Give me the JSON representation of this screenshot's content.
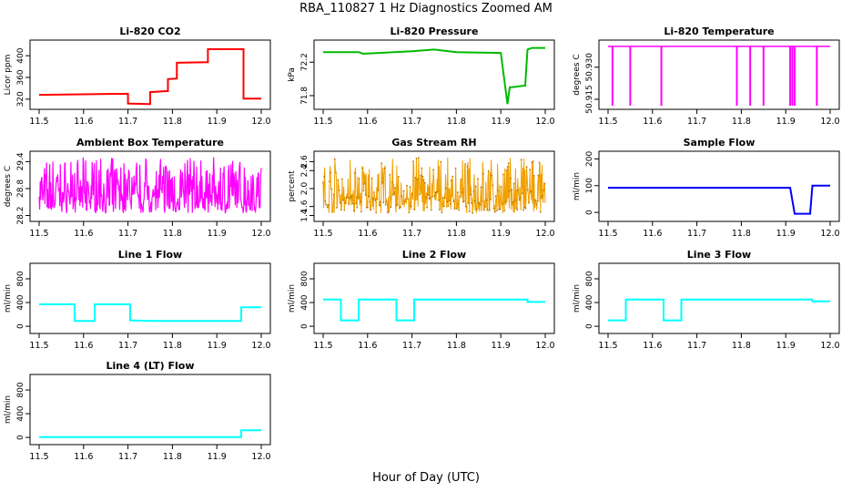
{
  "title": "RBA_110827  1 Hz Diagnostics Zoomed AM",
  "xlabel": "Hour of Day (UTC)",
  "colors": {
    "co2": "#ff0000",
    "pressure": "#00bb00",
    "temperature": "#ff00ff",
    "box_temp": "#ff00ff",
    "rh": "#f0a000",
    "rh_points": "#b87800",
    "sample_flow": "#0000ff",
    "line_flow": "#00ffff"
  },
  "chart_data": [
    {
      "type": "line",
      "title": "Li-820 CO2",
      "ylabel": "Licor ppm",
      "xlim": [
        11.5,
        12.0
      ],
      "ylim": [
        308,
        422
      ],
      "xticks": [
        "11.5",
        "11.6",
        "11.7",
        "11.8",
        "11.9",
        "12.0"
      ],
      "yticks": [
        "320",
        "360",
        "400"
      ],
      "color": "#ff0000",
      "series": [
        {
          "x": [
            11.5,
            11.7,
            11.7,
            11.75,
            11.75,
            11.79,
            11.79,
            11.81,
            11.81,
            11.88,
            11.88,
            11.96,
            11.96,
            12.0
          ],
          "y": [
            328,
            330,
            312,
            311,
            333,
            335,
            357,
            358,
            387,
            388,
            412,
            412,
            321,
            321
          ]
        }
      ]
    },
    {
      "type": "line",
      "title": "Li-820 Pressure",
      "ylabel": "kPa",
      "xlim": [
        11.5,
        12.0
      ],
      "ylim": [
        71.68,
        72.42
      ],
      "xticks": [
        "11.5",
        "11.6",
        "11.7",
        "11.8",
        "11.9",
        "12.0"
      ],
      "yticks": [
        "71.8",
        "72.2"
      ],
      "color": "#00bb00",
      "series": [
        {
          "x": [
            11.5,
            11.58,
            11.59,
            11.7,
            11.75,
            11.8,
            11.9,
            11.915,
            11.92,
            11.925,
            11.955,
            11.96,
            11.97,
            12.0
          ],
          "y": [
            72.32,
            72.32,
            72.3,
            72.33,
            72.35,
            72.32,
            72.31,
            71.7,
            71.9,
            71.9,
            71.92,
            72.35,
            72.37,
            72.37
          ]
        }
      ]
    },
    {
      "type": "line",
      "title": "Li-820 Temperature",
      "ylabel": "degrees C",
      "xlim": [
        11.5,
        12.0
      ],
      "ylim": [
        50.912,
        50.941
      ],
      "xticks": [
        "11.5",
        "11.6",
        "11.7",
        "11.8",
        "11.9",
        "12.0"
      ],
      "yticks": [
        "50.915",
        "50.930"
      ],
      "color": "#ff00ff",
      "baseline": 50.9398,
      "dips": [
        11.51,
        11.55,
        11.62,
        11.79,
        11.82,
        11.85,
        11.91,
        11.915,
        11.92,
        11.97
      ]
    },
    {
      "type": "line",
      "title": "Ambient Box Temperature",
      "ylabel": "degrees C",
      "xlim": [
        11.5,
        12.0
      ],
      "ylim": [
        28.15,
        29.55
      ],
      "xticks": [
        "11.5",
        "11.6",
        "11.7",
        "11.8",
        "11.9",
        "12.0"
      ],
      "yticks": [
        "28.2",
        "28.8",
        "29.4"
      ],
      "color": "#ff00ff",
      "noise": {
        "low": 28.25,
        "high": 29.5,
        "center": 28.65
      }
    },
    {
      "type": "scatter",
      "title": "Gas Stream RH",
      "ylabel": "percent",
      "xlim": [
        11.5,
        12.0
      ],
      "ylim": [
        1.35,
        2.75
      ],
      "xticks": [
        "11.5",
        "11.6",
        "11.7",
        "11.8",
        "11.9",
        "12.0"
      ],
      "yticks": [
        "1.4",
        "1.6",
        "2.0",
        "2.4",
        "2.6"
      ],
      "color": "#f0a000",
      "noise": {
        "low": 1.45,
        "high": 2.7,
        "center": 1.8
      }
    },
    {
      "type": "line",
      "title": "Sample Flow",
      "ylabel": "ml/min",
      "xlim": [
        11.5,
        12.0
      ],
      "ylim": [
        -20,
        215
      ],
      "xticks": [
        "11.5",
        "11.6",
        "11.7",
        "11.8",
        "11.9",
        "12.0"
      ],
      "yticks": [
        "0",
        "100",
        "200"
      ],
      "color": "#0000ff",
      "series": [
        {
          "x": [
            11.5,
            11.91,
            11.92,
            11.955,
            11.96,
            12.0
          ],
          "y": [
            92,
            92,
            -5,
            -5,
            100,
            100
          ]
        }
      ]
    },
    {
      "type": "line",
      "title": "Line 1 Flow",
      "ylabel": "ml/min",
      "xlim": [
        11.5,
        12.0
      ],
      "ylim": [
        -60,
        1000
      ],
      "xticks": [
        "11.5",
        "11.6",
        "11.7",
        "11.8",
        "11.9",
        "12.0"
      ],
      "yticks": [
        "0",
        "400",
        "800"
      ],
      "color": "#00ffff",
      "series": [
        {
          "x": [
            11.5,
            11.58,
            11.58,
            11.625,
            11.625,
            11.705,
            11.705,
            11.755,
            11.955,
            11.955,
            12.0
          ],
          "y": [
            370,
            370,
            90,
            90,
            370,
            370,
            100,
            90,
            90,
            320,
            320
          ]
        }
      ]
    },
    {
      "type": "line",
      "title": "Line 2 Flow",
      "ylabel": "ml/min",
      "xlim": [
        11.5,
        12.0
      ],
      "ylim": [
        -60,
        1000
      ],
      "xticks": [
        "11.5",
        "11.6",
        "11.7",
        "11.8",
        "11.9",
        "12.0"
      ],
      "yticks": [
        "0",
        "400",
        "800"
      ],
      "color": "#00ffff",
      "series": [
        {
          "x": [
            11.5,
            11.54,
            11.54,
            11.58,
            11.58,
            11.665,
            11.665,
            11.705,
            11.705,
            11.96,
            11.96,
            12.0
          ],
          "y": [
            450,
            450,
            100,
            100,
            450,
            450,
            100,
            100,
            450,
            450,
            410,
            410
          ]
        }
      ]
    },
    {
      "type": "line",
      "title": "Line 3 Flow",
      "ylabel": "ml/min",
      "xlim": [
        11.5,
        12.0
      ],
      "ylim": [
        -60,
        1000
      ],
      "xticks": [
        "11.5",
        "11.6",
        "11.7",
        "11.8",
        "11.9",
        "12.0"
      ],
      "yticks": [
        "0",
        "400",
        "800"
      ],
      "color": "#00ffff",
      "series": [
        {
          "x": [
            11.5,
            11.54,
            11.54,
            11.625,
            11.625,
            11.665,
            11.665,
            11.96,
            11.96,
            12.0
          ],
          "y": [
            100,
            100,
            450,
            450,
            100,
            100,
            450,
            450,
            420,
            420
          ]
        }
      ]
    },
    {
      "type": "line",
      "title": "Line 4 (LT) Flow",
      "ylabel": "ml/min",
      "xlim": [
        11.5,
        12.0
      ],
      "ylim": [
        -60,
        1000
      ],
      "xticks": [
        "11.5",
        "11.6",
        "11.7",
        "11.8",
        "11.9",
        "12.0"
      ],
      "yticks": [
        "0",
        "400",
        "800"
      ],
      "color": "#00ffff",
      "series": [
        {
          "x": [
            11.5,
            11.955,
            11.955,
            12.0
          ],
          "y": [
            5,
            5,
            120,
            120
          ]
        }
      ]
    }
  ]
}
